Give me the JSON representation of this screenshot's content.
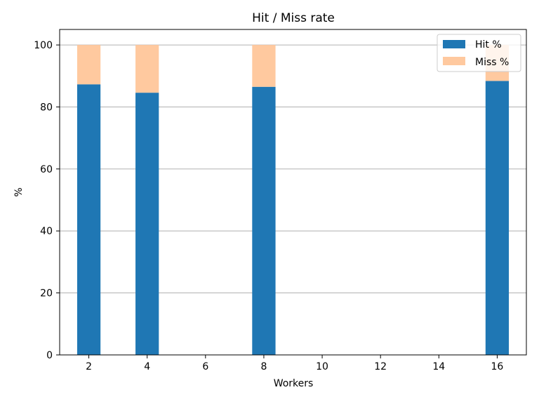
{
  "chart_data": {
    "type": "bar",
    "stacked": true,
    "title": "Hit / Miss rate",
    "xlabel": "Workers",
    "ylabel": "%",
    "x": [
      2,
      4,
      8,
      16
    ],
    "series": [
      {
        "name": "Hit %",
        "values": [
          87.3,
          84.6,
          86.5,
          88.4
        ],
        "color": "#1f77b4"
      },
      {
        "name": "Miss %",
        "values": [
          12.7,
          15.4,
          13.5,
          11.6
        ],
        "color": "#ffc99f"
      }
    ],
    "xlim": [
      1,
      17
    ],
    "ylim": [
      0,
      105
    ],
    "xticks": [
      2,
      4,
      6,
      8,
      10,
      12,
      14,
      16
    ],
    "yticks": [
      0,
      20,
      40,
      60,
      80,
      100
    ],
    "grid": "y",
    "legend_position": "top-right"
  }
}
